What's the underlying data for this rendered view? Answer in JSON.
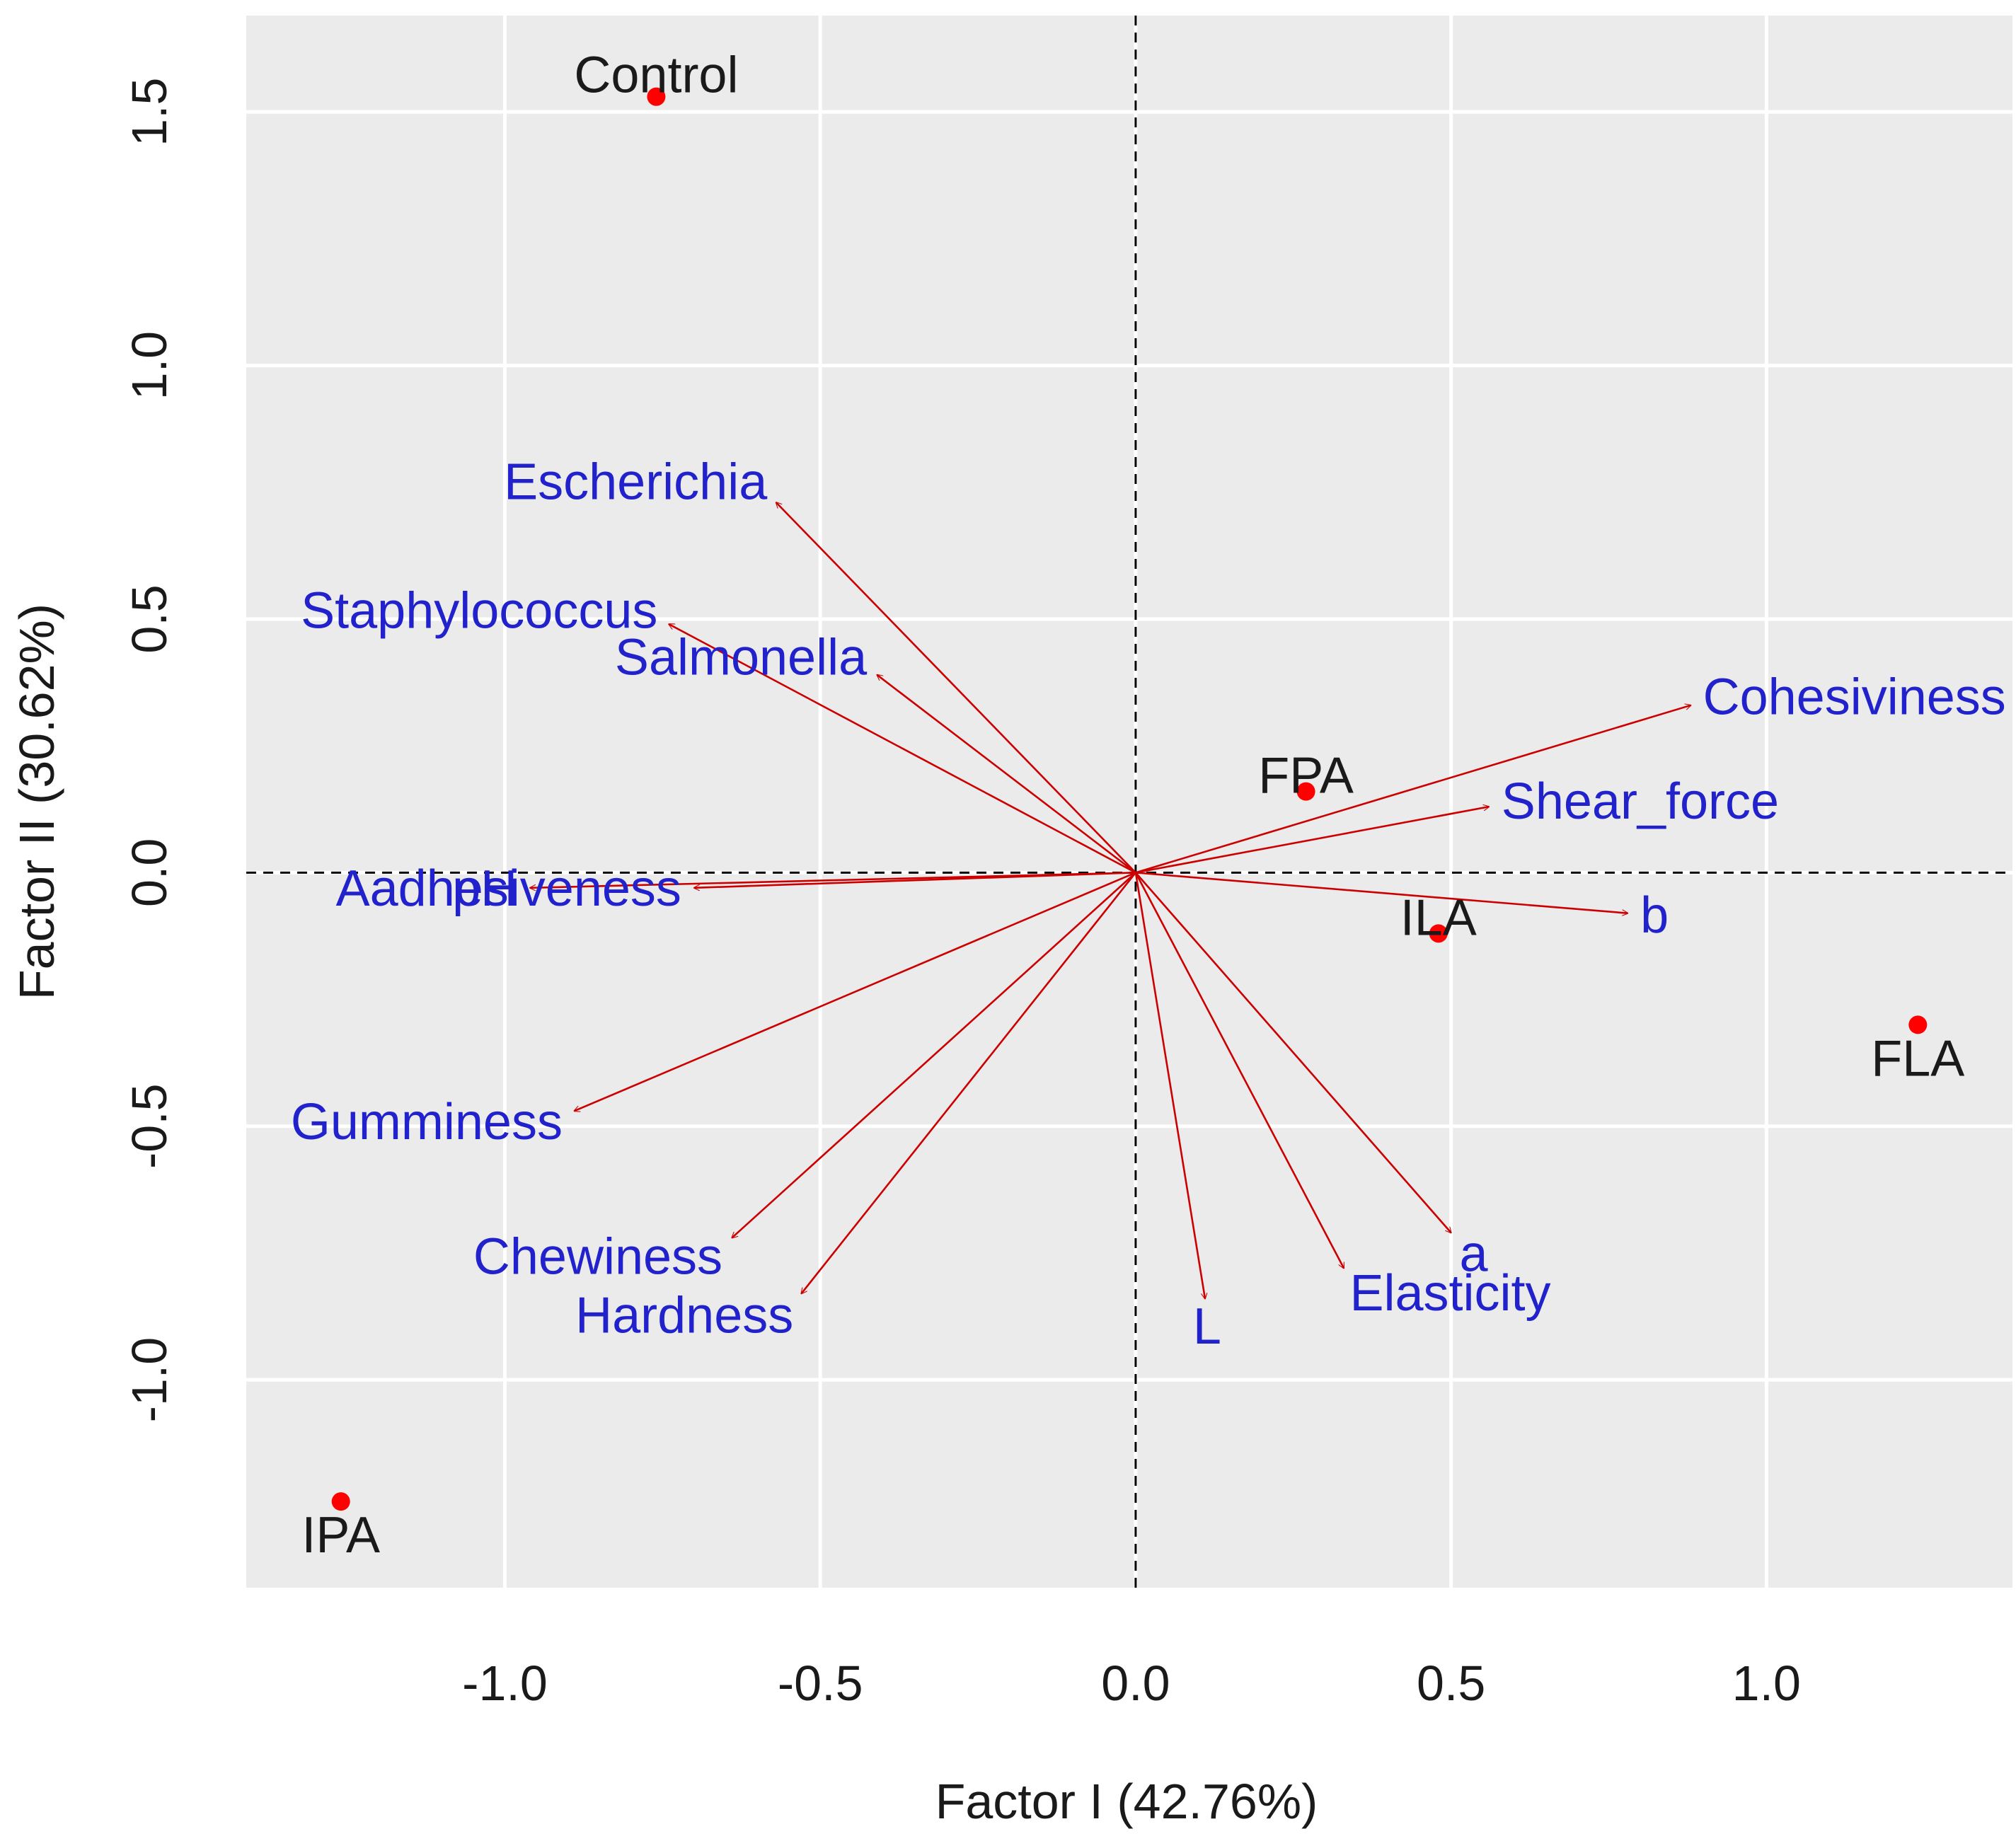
{
  "chart_data": {
    "type": "scatter",
    "subtype": "biplot",
    "xlabel": "Factor I (42.76%)",
    "ylabel": "Factor II (30.62%)",
    "xlim": [
      -1.41,
      1.39
    ],
    "ylim": [
      -1.41,
      1.69
    ],
    "x_ticks": [
      "-1.0",
      "-0.5",
      "0.0",
      "0.5",
      "1.0"
    ],
    "x_tick_values": [
      -1.0,
      -0.5,
      0.0,
      0.5,
      1.0
    ],
    "y_ticks": [
      "-1.0",
      "-0.5",
      "0.0",
      "0.5",
      "1.0",
      "1.5"
    ],
    "y_tick_values": [
      -1.0,
      -0.5,
      0.0,
      0.5,
      1.0,
      1.5
    ],
    "grid": true,
    "reference_lines": {
      "x": 0,
      "y": 0,
      "style": "dashed"
    },
    "colors": {
      "panel": "#ebebeb",
      "grid": "#ffffff",
      "points": "#ff0000",
      "arrows": "#cc0000",
      "variable_labels": "#2222cc",
      "observation_labels": "#1a1a1a"
    },
    "observations": [
      {
        "label": "Control",
        "x": -0.76,
        "y": 1.53
      },
      {
        "label": "FPA",
        "x": 0.27,
        "y": 0.16
      },
      {
        "label": "ILA",
        "x": 0.48,
        "y": -0.12
      },
      {
        "label": "FLA",
        "x": 1.24,
        "y": -0.3
      },
      {
        "label": "IPA",
        "x": -1.26,
        "y": -1.24
      }
    ],
    "variables": [
      {
        "label": "Escherichia",
        "x": -0.57,
        "y": 0.73
      },
      {
        "label": "Staphylococcus",
        "x": -0.74,
        "y": 0.49
      },
      {
        "label": "Salmonella",
        "x": -0.41,
        "y": 0.39
      },
      {
        "label": "Cohesiviness",
        "x": 0.88,
        "y": 0.33
      },
      {
        "label": "Shear_force",
        "x": 0.56,
        "y": 0.13
      },
      {
        "label": "pH",
        "x": -0.96,
        "y": -0.03
      },
      {
        "label": "Aadhesiveness",
        "x": -0.7,
        "y": -0.03
      },
      {
        "label": "b",
        "x": 0.78,
        "y": -0.08
      },
      {
        "label": "Gumminess",
        "x": -0.89,
        "y": -0.47
      },
      {
        "label": "Chewiness",
        "x": -0.64,
        "y": -0.72
      },
      {
        "label": "Hardness",
        "x": -0.53,
        "y": -0.83
      },
      {
        "label": "L",
        "x": 0.11,
        "y": -0.84
      },
      {
        "label": "Elasticity",
        "x": 0.33,
        "y": -0.78
      },
      {
        "label": "a",
        "x": 0.5,
        "y": -0.71
      }
    ]
  }
}
